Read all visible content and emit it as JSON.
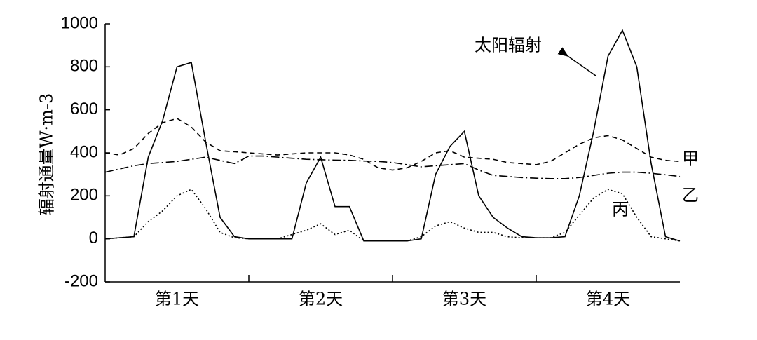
{
  "chart_data": {
    "type": "line",
    "y_label": "辐射通量W·m-3",
    "categories": [
      "第1天",
      "第2天",
      "第3天",
      "第4天"
    ],
    "x": [
      0,
      0.1,
      0.2,
      0.3,
      0.4,
      0.5,
      0.6,
      0.7,
      0.8,
      0.9,
      1,
      1.1,
      1.2,
      1.3,
      1.4,
      1.5,
      1.6,
      1.7,
      1.8,
      1.9,
      2,
      2.1,
      2.2,
      2.3,
      2.4,
      2.5,
      2.6,
      2.7,
      2.8,
      2.9,
      3,
      3.1,
      3.2,
      3.3,
      3.4,
      3.5,
      3.6,
      3.7,
      3.8,
      3.9,
      4
    ],
    "xlim": [
      0,
      4
    ],
    "xticks": [
      1,
      2,
      3
    ],
    "ylim": [
      -200,
      1000
    ],
    "yticks": [
      -200,
      0,
      200,
      400,
      600,
      800,
      1000
    ],
    "series": [
      {
        "name": "太阳辐射",
        "color": "#000",
        "dash": "none",
        "values": [
          0,
          5,
          10,
          380,
          550,
          800,
          820,
          450,
          100,
          10,
          0,
          0,
          0,
          0,
          260,
          380,
          150,
          150,
          -10,
          -10,
          -10,
          -10,
          0,
          300,
          430,
          500,
          200,
          100,
          50,
          10,
          5,
          5,
          10,
          200,
          500,
          850,
          970,
          800,
          350,
          10,
          -10
        ]
      },
      {
        "name": "甲",
        "color": "#000",
        "dash": "7 5",
        "values": [
          400,
          390,
          420,
          490,
          540,
          560,
          520,
          450,
          410,
          405,
          400,
          395,
          390,
          395,
          400,
          400,
          400,
          390,
          370,
          330,
          320,
          330,
          360,
          400,
          410,
          380,
          375,
          370,
          355,
          350,
          345,
          360,
          400,
          440,
          470,
          480,
          460,
          420,
          380,
          365,
          360
        ]
      },
      {
        "name": "乙",
        "color": "#000",
        "dash": "12 4 2 4",
        "values": [
          310,
          325,
          340,
          350,
          355,
          360,
          370,
          380,
          365,
          350,
          385,
          385,
          380,
          375,
          370,
          368,
          366,
          365,
          362,
          360,
          355,
          345,
          335,
          340,
          345,
          350,
          320,
          295,
          290,
          285,
          282,
          280,
          280,
          285,
          295,
          305,
          310,
          310,
          305,
          298,
          290
        ]
      },
      {
        "name": "丙",
        "color": "#000",
        "dash": "2 3",
        "values": [
          0,
          5,
          10,
          80,
          130,
          200,
          230,
          140,
          30,
          5,
          0,
          0,
          0,
          20,
          40,
          70,
          20,
          40,
          -10,
          -10,
          -10,
          -10,
          10,
          60,
          80,
          50,
          30,
          30,
          10,
          5,
          5,
          5,
          30,
          110,
          190,
          230,
          210,
          100,
          10,
          0,
          -10
        ]
      }
    ]
  }
}
